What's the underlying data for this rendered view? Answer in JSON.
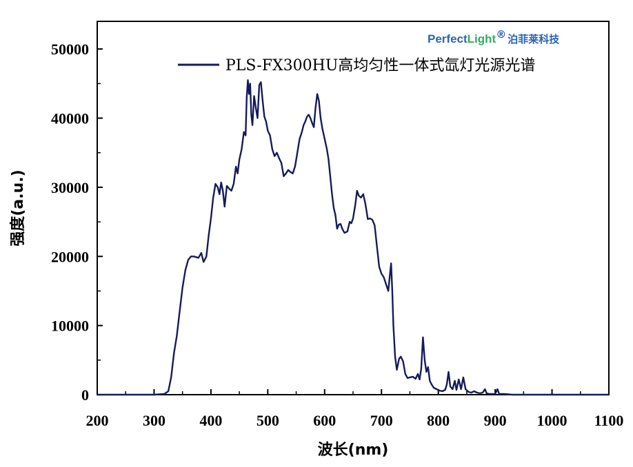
{
  "logo": {
    "part1": "Perfect",
    "part2": "Light",
    "reg": "®",
    "cn": "泊菲莱科技",
    "color_blue": "#2a63b8",
    "color_green": "#2fae5a"
  },
  "chart_data": {
    "type": "line",
    "title": "",
    "xlabel": "波长(nm)",
    "ylabel": "强度(a.u.)",
    "xlim": [
      200,
      1100
    ],
    "ylim": [
      0,
      54000
    ],
    "xticks": [
      200,
      300,
      400,
      500,
      600,
      700,
      800,
      900,
      1000,
      1100
    ],
    "yticks": [
      0,
      10000,
      20000,
      30000,
      40000,
      50000
    ],
    "xtick_labels": [
      "200",
      "300",
      "400",
      "500",
      "600",
      "700",
      "800",
      "900",
      "1000",
      "1100"
    ],
    "ytick_labels": [
      "0",
      "10000",
      "20000",
      "30000",
      "40000",
      "50000"
    ],
    "legend_position": "top-right",
    "series": [
      {
        "name": "PLS-FX300HU高均匀性一体式氙灯光源光谱",
        "color": "#141a5c",
        "points": [
          [
            200,
            0
          ],
          [
            300,
            0
          ],
          [
            318,
            100
          ],
          [
            325,
            500
          ],
          [
            330,
            2500
          ],
          [
            335,
            6000
          ],
          [
            340,
            8500
          ],
          [
            345,
            12000
          ],
          [
            350,
            15500
          ],
          [
            355,
            18000
          ],
          [
            360,
            19500
          ],
          [
            365,
            20000
          ],
          [
            370,
            20000
          ],
          [
            378,
            19800
          ],
          [
            383,
            20500
          ],
          [
            387,
            19200
          ],
          [
            392,
            20000
          ],
          [
            396,
            23000
          ],
          [
            400,
            25500
          ],
          [
            404,
            28500
          ],
          [
            408,
            30500
          ],
          [
            412,
            30000
          ],
          [
            415,
            29000
          ],
          [
            418,
            30700
          ],
          [
            421,
            29500
          ],
          [
            424,
            27200
          ],
          [
            428,
            30200
          ],
          [
            432,
            29800
          ],
          [
            436,
            29500
          ],
          [
            440,
            30500
          ],
          [
            444,
            33000
          ],
          [
            447,
            32000
          ],
          [
            450,
            34000
          ],
          [
            454,
            35500
          ],
          [
            458,
            38000
          ],
          [
            461,
            37500
          ],
          [
            463,
            43000
          ],
          [
            465,
            45500
          ],
          [
            467,
            43500
          ],
          [
            469,
            45000
          ],
          [
            471,
            40500
          ],
          [
            473,
            39000
          ],
          [
            476,
            43200
          ],
          [
            479,
            41500
          ],
          [
            482,
            40000
          ],
          [
            485,
            44800
          ],
          [
            488,
            45200
          ],
          [
            491,
            42500
          ],
          [
            494,
            40200
          ],
          [
            497,
            39500
          ],
          [
            500,
            38200
          ],
          [
            504,
            37500
          ],
          [
            508,
            35500
          ],
          [
            512,
            34500
          ],
          [
            516,
            35000
          ],
          [
            520,
            34200
          ],
          [
            524,
            33500
          ],
          [
            528,
            31600
          ],
          [
            532,
            32000
          ],
          [
            536,
            32500
          ],
          [
            540,
            32200
          ],
          [
            544,
            32000
          ],
          [
            548,
            33000
          ],
          [
            552,
            35000
          ],
          [
            556,
            37000
          ],
          [
            560,
            38000
          ],
          [
            563,
            39000
          ],
          [
            566,
            39500
          ],
          [
            569,
            40200
          ],
          [
            572,
            40500
          ],
          [
            575,
            40000
          ],
          [
            578,
            39300
          ],
          [
            581,
            38700
          ],
          [
            584,
            41500
          ],
          [
            587,
            43500
          ],
          [
            590,
            42500
          ],
          [
            593,
            40000
          ],
          [
            596,
            38500
          ],
          [
            600,
            37000
          ],
          [
            604,
            35500
          ],
          [
            607,
            34000
          ],
          [
            610,
            31500
          ],
          [
            613,
            29000
          ],
          [
            616,
            27000
          ],
          [
            619,
            26000
          ],
          [
            622,
            24000
          ],
          [
            625,
            24600
          ],
          [
            628,
            24700
          ],
          [
            631,
            24000
          ],
          [
            635,
            23400
          ],
          [
            640,
            23600
          ],
          [
            644,
            25000
          ],
          [
            647,
            24800
          ],
          [
            650,
            25500
          ],
          [
            654,
            27500
          ],
          [
            657,
            29500
          ],
          [
            660,
            28800
          ],
          [
            664,
            28500
          ],
          [
            668,
            29000
          ],
          [
            672,
            27500
          ],
          [
            676,
            25400
          ],
          [
            680,
            25500
          ],
          [
            684,
            25300
          ],
          [
            688,
            24500
          ],
          [
            692,
            21500
          ],
          [
            696,
            18500
          ],
          [
            700,
            17500
          ],
          [
            704,
            17000
          ],
          [
            708,
            16000
          ],
          [
            712,
            15000
          ],
          [
            715,
            17500
          ],
          [
            717,
            19000
          ],
          [
            719,
            15000
          ],
          [
            721,
            10000
          ],
          [
            724,
            5500
          ],
          [
            727,
            3600
          ],
          [
            731,
            5200
          ],
          [
            734,
            5500
          ],
          [
            738,
            4800
          ],
          [
            742,
            3000
          ],
          [
            746,
            2400
          ],
          [
            750,
            2500
          ],
          [
            755,
            2600
          ],
          [
            760,
            2300
          ],
          [
            764,
            3000
          ],
          [
            767,
            2200
          ],
          [
            770,
            3800
          ],
          [
            773,
            8300
          ],
          [
            776,
            5000
          ],
          [
            779,
            3300
          ],
          [
            782,
            4000
          ],
          [
            785,
            2000
          ],
          [
            788,
            1500
          ],
          [
            792,
            1000
          ],
          [
            797,
            800
          ],
          [
            802,
            600
          ],
          [
            807,
            500
          ],
          [
            812,
            700
          ],
          [
            815,
            1500
          ],
          [
            818,
            3300
          ],
          [
            821,
            1200
          ],
          [
            825,
            800
          ],
          [
            829,
            2000
          ],
          [
            832,
            700
          ],
          [
            836,
            2200
          ],
          [
            840,
            800
          ],
          [
            844,
            2500
          ],
          [
            848,
            800
          ],
          [
            853,
            400
          ],
          [
            858,
            300
          ],
          [
            863,
            500
          ],
          [
            868,
            300
          ],
          [
            873,
            200
          ],
          [
            878,
            300
          ],
          [
            882,
            800
          ],
          [
            885,
            200
          ],
          [
            890,
            100
          ],
          [
            900,
            100
          ],
          [
            904,
            800
          ],
          [
            907,
            100
          ],
          [
            915,
            100
          ],
          [
            930,
            0
          ],
          [
            1100,
            0
          ]
        ]
      }
    ]
  }
}
